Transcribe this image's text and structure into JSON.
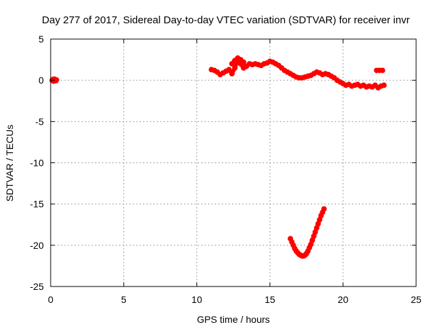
{
  "chart_data": {
    "type": "scatter",
    "title": "Day 277 of 2017, Sidereal Day-to-day VTEC variation (SDTVAR) for receiver invr",
    "xlabel": "GPS time / hours",
    "ylabel": "SDTVAR / TECUs",
    "xlim": [
      0,
      25
    ],
    "ylim": [
      -25,
      5
    ],
    "xticks": [
      "0",
      "5",
      "10",
      "15",
      "20",
      "25"
    ],
    "yticks": [
      "5",
      "0",
      "-5",
      "-10",
      "-15",
      "-20",
      "-25"
    ],
    "grid": true,
    "marker_color": "#ff0000",
    "series": [
      {
        "x": [
          0.1,
          0.15,
          0.2,
          0.25,
          0.3,
          0.35,
          0.4
        ],
        "y": [
          0.0,
          0.1,
          -0.1,
          0.15,
          0.0,
          -0.05,
          0.05
        ]
      },
      {
        "x": [
          11.0,
          11.2,
          11.4,
          11.6,
          11.8,
          12.0,
          12.2,
          12.4,
          12.6,
          12.8,
          13.0,
          13.2,
          13.4,
          13.6,
          13.8,
          14.0,
          14.2,
          14.4,
          14.6,
          14.8,
          15.0,
          15.2,
          15.4,
          15.6,
          15.8,
          16.0,
          16.2,
          16.4,
          16.6,
          16.8,
          17.0,
          17.2,
          17.4,
          17.6,
          17.8,
          18.0,
          18.2,
          18.4,
          18.6,
          18.8,
          19.0,
          19.2,
          19.4,
          19.6,
          19.8,
          20.0,
          20.2,
          20.4,
          20.6,
          20.8,
          21.0,
          21.2,
          21.4,
          21.6,
          21.8,
          22.0,
          22.2,
          22.4,
          22.6,
          22.8
        ],
        "y": [
          1.3,
          1.2,
          1.0,
          0.7,
          0.9,
          1.1,
          1.3,
          0.8,
          1.5,
          2.5,
          2.0,
          1.5,
          1.7,
          2.0,
          1.9,
          2.0,
          1.9,
          1.8,
          2.0,
          2.1,
          2.3,
          2.2,
          2.0,
          1.8,
          1.5,
          1.2,
          1.0,
          0.8,
          0.6,
          0.4,
          0.3,
          0.3,
          0.4,
          0.5,
          0.6,
          0.8,
          1.0,
          0.9,
          0.7,
          0.8,
          0.7,
          0.5,
          0.3,
          0.0,
          -0.2,
          -0.4,
          -0.6,
          -0.5,
          -0.7,
          -0.6,
          -0.5,
          -0.7,
          -0.6,
          -0.8,
          -0.7,
          -0.8,
          -0.6,
          -0.9,
          -0.7,
          -0.6
        ]
      },
      {
        "x": [
          12.4,
          12.6,
          12.8,
          13.0,
          13.2
        ],
        "y": [
          2.0,
          2.4,
          2.7,
          2.5,
          2.2
        ]
      },
      {
        "x": [
          22.3,
          22.5,
          22.7
        ],
        "y": [
          1.2,
          1.2,
          1.2
        ]
      },
      {
        "x": [
          16.4,
          16.5,
          16.6,
          16.7,
          16.8,
          16.9,
          17.0,
          17.1,
          17.2,
          17.3,
          17.4,
          17.5,
          17.6,
          17.7,
          17.8,
          17.9,
          18.0,
          18.1,
          18.2,
          18.3,
          18.4,
          18.5,
          18.6,
          18.7
        ],
        "y": [
          -19.2,
          -19.6,
          -20.0,
          -20.4,
          -20.7,
          -20.9,
          -21.1,
          -21.2,
          -21.3,
          -21.3,
          -21.2,
          -21.0,
          -20.7,
          -20.3,
          -19.9,
          -19.4,
          -18.9,
          -18.4,
          -17.9,
          -17.4,
          -16.9,
          -16.4,
          -16.0,
          -15.6
        ]
      }
    ]
  }
}
